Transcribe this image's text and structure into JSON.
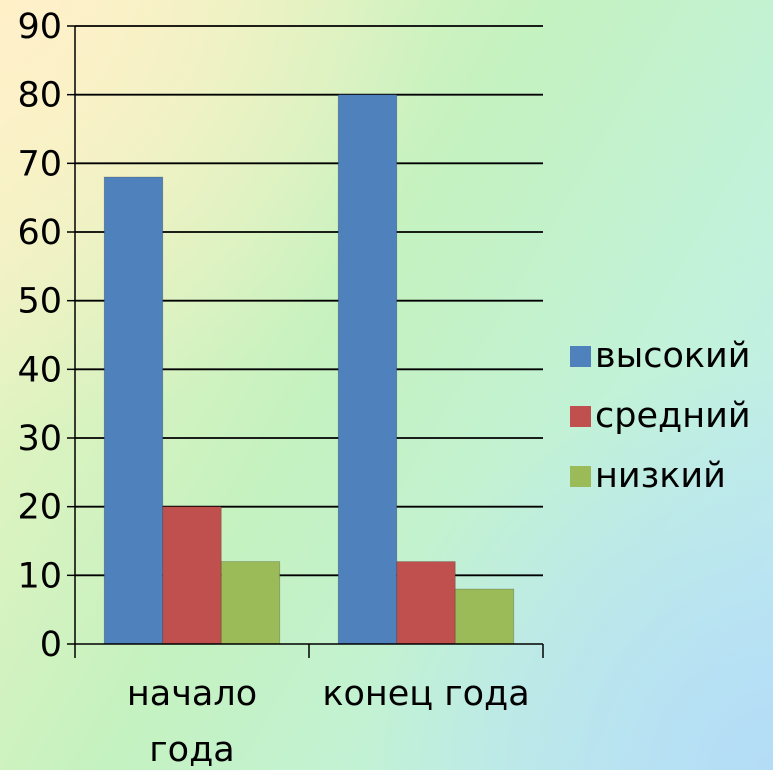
{
  "chart_data": {
    "type": "bar",
    "categories": [
      [
        "начало",
        "года"
      ],
      [
        "конец года"
      ]
    ],
    "series": [
      {
        "name": "высокий",
        "values": [
          68,
          80
        ],
        "color": "#4f81bd"
      },
      {
        "name": "средний",
        "values": [
          20,
          12
        ],
        "color": "#c0504d"
      },
      {
        "name": "низкий",
        "values": [
          12,
          8
        ],
        "color": "#9bbb59"
      }
    ],
    "ylim": [
      0,
      90
    ],
    "yticks": [
      0,
      10,
      20,
      30,
      40,
      50,
      60,
      70,
      80,
      90
    ],
    "grid": true,
    "legend_position": "right",
    "title": "",
    "xlabel": "",
    "ylabel": ""
  }
}
